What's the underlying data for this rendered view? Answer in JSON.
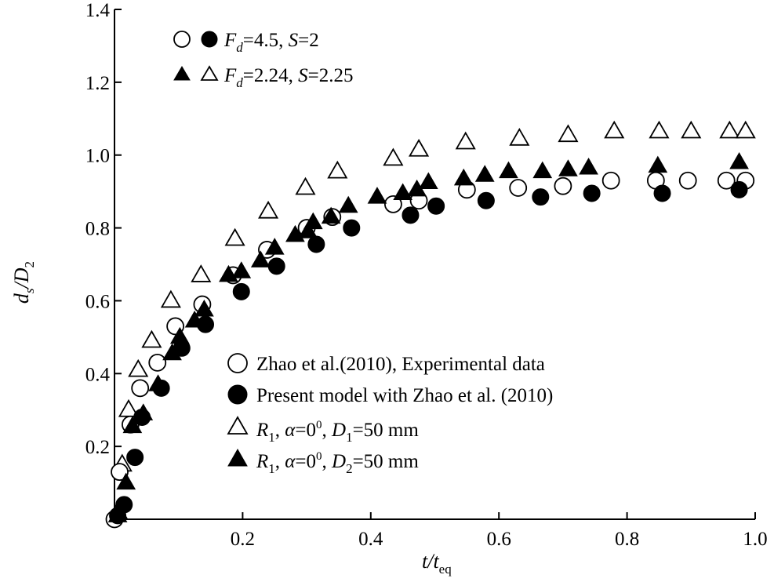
{
  "chart_data": {
    "type": "scatter",
    "xlabel": "t/t",
    "xlabel_sub": "eq",
    "ylabel": "d",
    "ylabel_sub1": "s",
    "ylabel_mid": "/D",
    "ylabel_sub2": "2",
    "xlim": [
      0,
      1.0
    ],
    "ylim": [
      0,
      1.4
    ],
    "xticks": [
      0.2,
      0.4,
      0.6,
      0.8,
      1.0
    ],
    "xtick_labels": [
      "0.2",
      "0.4",
      "0.6",
      "0.8",
      "1.0"
    ],
    "yticks": [
      0.2,
      0.4,
      0.6,
      0.8,
      1.0,
      1.2,
      1.4
    ],
    "ytick_labels": [
      "0.2",
      "0.4",
      "0.6",
      "0.8",
      "1.0",
      "1.2",
      "1.4"
    ],
    "grid": false,
    "legend_top": {
      "placement": "top-left",
      "entries": [
        {
          "markers": [
            "open-circle",
            "filled-circle"
          ],
          "label_main": "F",
          "label_sub": "d",
          "label_rest": "=4.5, ",
          "label_param": "S",
          "label_param_rest": "=2"
        },
        {
          "markers": [
            "filled-triangle",
            "open-triangle"
          ],
          "label_main": "F",
          "label_sub": "d",
          "label_rest": "=2.24, ",
          "label_param": "S",
          "label_param_rest": "=2.25"
        }
      ]
    },
    "legend_bottom": {
      "placement": "center-right",
      "entries": [
        {
          "marker": "open-circle",
          "label": "Zhao et al.(2010), Experimental data"
        },
        {
          "marker": "filled-circle",
          "label": "Present model with Zhao et al. (2010)"
        },
        {
          "marker": "open-triangle",
          "parts": [
            "R",
            "1",
            ", ",
            "α",
            "=0",
            "0",
            ", ",
            "D",
            "1",
            "=50 mm"
          ]
        },
        {
          "marker": "filled-triangle",
          "parts": [
            "R",
            "1",
            ", ",
            "α",
            "=0",
            "0",
            ", ",
            "D",
            "2",
            "=50 mm"
          ]
        }
      ]
    },
    "series": [
      {
        "name": "Zhao et al.(2010), Experimental data",
        "marker": "open-circle",
        "points": [
          [
            0.0,
            0.0
          ],
          [
            0.008,
            0.13
          ],
          [
            0.025,
            0.26
          ],
          [
            0.04,
            0.36
          ],
          [
            0.067,
            0.43
          ],
          [
            0.095,
            0.53
          ],
          [
            0.137,
            0.59
          ],
          [
            0.185,
            0.67
          ],
          [
            0.238,
            0.74
          ],
          [
            0.3,
            0.8
          ],
          [
            0.34,
            0.83
          ],
          [
            0.435,
            0.865
          ],
          [
            0.475,
            0.875
          ],
          [
            0.55,
            0.905
          ],
          [
            0.63,
            0.91
          ],
          [
            0.7,
            0.915
          ],
          [
            0.775,
            0.93
          ],
          [
            0.845,
            0.93
          ],
          [
            0.895,
            0.93
          ],
          [
            0.955,
            0.93
          ],
          [
            0.985,
            0.93
          ]
        ]
      },
      {
        "name": "Present model with Zhao et al. (2010)",
        "marker": "filled-circle",
        "points": [
          [
            0.005,
            0.01
          ],
          [
            0.015,
            0.04
          ],
          [
            0.032,
            0.17
          ],
          [
            0.043,
            0.28
          ],
          [
            0.073,
            0.36
          ],
          [
            0.105,
            0.47
          ],
          [
            0.142,
            0.535
          ],
          [
            0.198,
            0.625
          ],
          [
            0.253,
            0.695
          ],
          [
            0.315,
            0.755
          ],
          [
            0.37,
            0.8
          ],
          [
            0.462,
            0.835
          ],
          [
            0.502,
            0.86
          ],
          [
            0.58,
            0.875
          ],
          [
            0.665,
            0.885
          ],
          [
            0.745,
            0.895
          ],
          [
            0.855,
            0.895
          ],
          [
            0.975,
            0.905
          ]
        ]
      },
      {
        "name": "R1, α=0°, D1=50 mm",
        "marker": "open-triangle",
        "points": [
          [
            0.005,
            0.02
          ],
          [
            0.012,
            0.15
          ],
          [
            0.022,
            0.3
          ],
          [
            0.037,
            0.41
          ],
          [
            0.058,
            0.49
          ],
          [
            0.088,
            0.6
          ],
          [
            0.135,
            0.67
          ],
          [
            0.188,
            0.77
          ],
          [
            0.24,
            0.845
          ],
          [
            0.298,
            0.91
          ],
          [
            0.348,
            0.955
          ],
          [
            0.435,
            0.99
          ],
          [
            0.475,
            1.015
          ],
          [
            0.548,
            1.035
          ],
          [
            0.632,
            1.045
          ],
          [
            0.708,
            1.055
          ],
          [
            0.78,
            1.065
          ],
          [
            0.85,
            1.065
          ],
          [
            0.9,
            1.065
          ],
          [
            0.96,
            1.065
          ],
          [
            0.985,
            1.065
          ]
        ]
      },
      {
        "name": "R1, α=0°, D2=50 mm",
        "marker": "filled-triangle",
        "points": [
          [
            0.005,
            0.01
          ],
          [
            0.018,
            0.1
          ],
          [
            0.028,
            0.255
          ],
          [
            0.045,
            0.29
          ],
          [
            0.068,
            0.37
          ],
          [
            0.09,
            0.455
          ],
          [
            0.102,
            0.5
          ],
          [
            0.125,
            0.545
          ],
          [
            0.14,
            0.575
          ],
          [
            0.178,
            0.67
          ],
          [
            0.198,
            0.68
          ],
          [
            0.228,
            0.71
          ],
          [
            0.25,
            0.745
          ],
          [
            0.282,
            0.78
          ],
          [
            0.302,
            0.79
          ],
          [
            0.31,
            0.815
          ],
          [
            0.338,
            0.83
          ],
          [
            0.365,
            0.86
          ],
          [
            0.41,
            0.885
          ],
          [
            0.45,
            0.895
          ],
          [
            0.472,
            0.905
          ],
          [
            0.49,
            0.925
          ],
          [
            0.545,
            0.935
          ],
          [
            0.578,
            0.945
          ],
          [
            0.615,
            0.955
          ],
          [
            0.668,
            0.955
          ],
          [
            0.708,
            0.96
          ],
          [
            0.74,
            0.965
          ],
          [
            0.848,
            0.97
          ],
          [
            0.975,
            0.98
          ]
        ]
      }
    ]
  }
}
